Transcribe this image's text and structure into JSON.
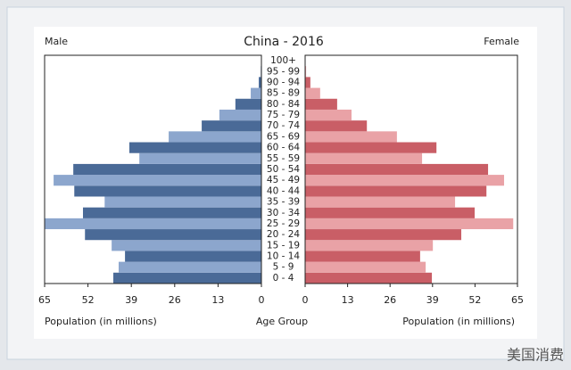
{
  "chart_data": {
    "type": "population-pyramid",
    "title": "China - 2016",
    "x_label": "Population (in millions)",
    "category_label": "Age Group",
    "categories": [
      "0 - 4",
      "5 - 9",
      "10 - 14",
      "15 - 19",
      "20 - 24",
      "25 - 29",
      "30 - 34",
      "35 - 39",
      "40 - 44",
      "45 - 49",
      "50 - 54",
      "55 - 59",
      "60 - 64",
      "65 - 69",
      "70 - 74",
      "75 - 79",
      "80 - 84",
      "85 - 89",
      "90 - 94",
      "95 - 99",
      "100+"
    ],
    "series": [
      {
        "name": "Male",
        "colors": [
          "#4a6a97",
          "#8ca6cd"
        ],
        "values": [
          44.4,
          42.8,
          40.9,
          44.9,
          52.9,
          65,
          53.5,
          47,
          56.1,
          62.3,
          56.4,
          36.6,
          39.6,
          27.8,
          17.9,
          12.6,
          7.8,
          3.2,
          0.8,
          0.2,
          0
        ]
      },
      {
        "name": "Female",
        "colors": [
          "#c95e66",
          "#e9a2a6"
        ],
        "values": [
          38.8,
          36.9,
          35.2,
          39.1,
          47.8,
          63.7,
          51.9,
          45.9,
          55.5,
          60.9,
          56,
          35.8,
          40.2,
          28.1,
          18.9,
          14.2,
          9.8,
          4.6,
          1.6,
          0.3,
          0
        ]
      }
    ],
    "xlim": [
      0,
      65
    ],
    "xticks": [
      0,
      13,
      26,
      39,
      52,
      65
    ],
    "watermark": "美国消费"
  }
}
